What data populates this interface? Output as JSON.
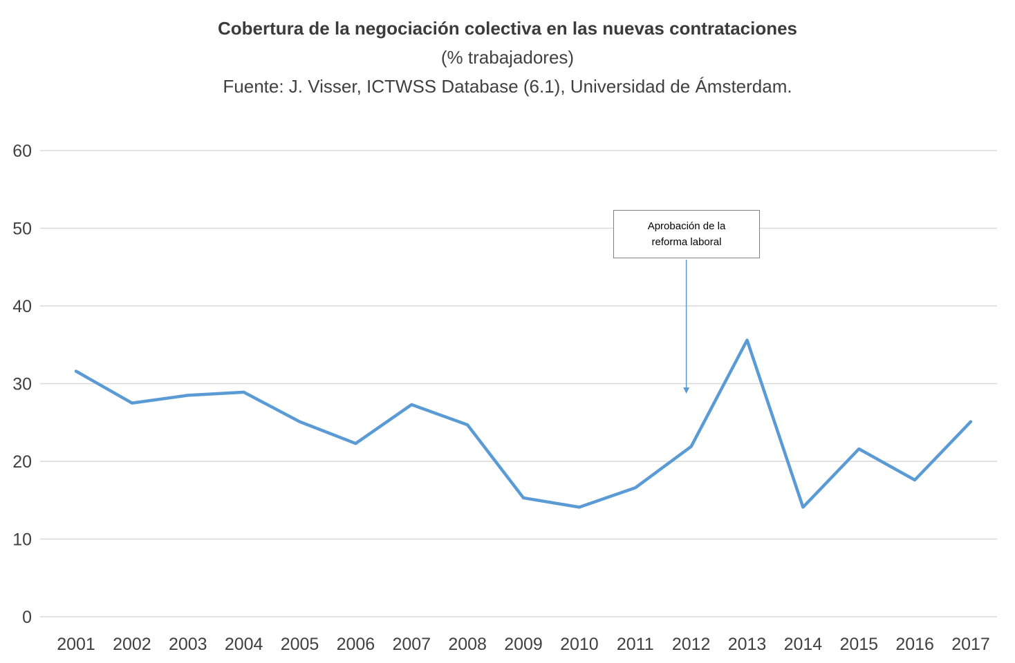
{
  "header": {
    "title": "Cobertura de la negociación colectiva en las nuevas contrataciones",
    "subtitle": "(% trabajadores)",
    "source": "Fuente: J. Visser, ICTWSS Database (6.1), Universidad de Ámsterdam."
  },
  "annotation": {
    "line1": "Aprobación de la",
    "line2": "reforma laboral",
    "target_year": 2012
  },
  "chart_data": {
    "type": "line",
    "title": "Cobertura de la negociación colectiva en las nuevas contrataciones",
    "subtitle": "(% trabajadores)",
    "source": "Fuente: J. Visser, ICTWSS Database (6.1), Universidad de Ámsterdam.",
    "x": [
      2001,
      2002,
      2003,
      2004,
      2005,
      2006,
      2007,
      2008,
      2009,
      2010,
      2011,
      2012,
      2013,
      2014,
      2015,
      2016,
      2017
    ],
    "series": [
      {
        "name": "Cobertura de la negociación colectiva (% trabajadores)",
        "values": [
          31.6,
          27.5,
          28.5,
          28.9,
          25.1,
          22.3,
          27.3,
          24.7,
          15.3,
          14.1,
          16.6,
          21.9,
          35.6,
          14.1,
          21.6,
          17.6,
          25.1
        ]
      }
    ],
    "ylim": [
      0,
      60
    ],
    "yticks": [
      0,
      10,
      20,
      30,
      40,
      50,
      60
    ],
    "grid": true,
    "legend": "none",
    "annotation_text": "Aprobación de la reforma laboral",
    "colors": {
      "line": "#5b9bd5",
      "grid": "#d9d9d9",
      "axis_text": "#404040",
      "annotation_border": "#7f7f7f",
      "arrow": "#5b9bd5"
    }
  }
}
